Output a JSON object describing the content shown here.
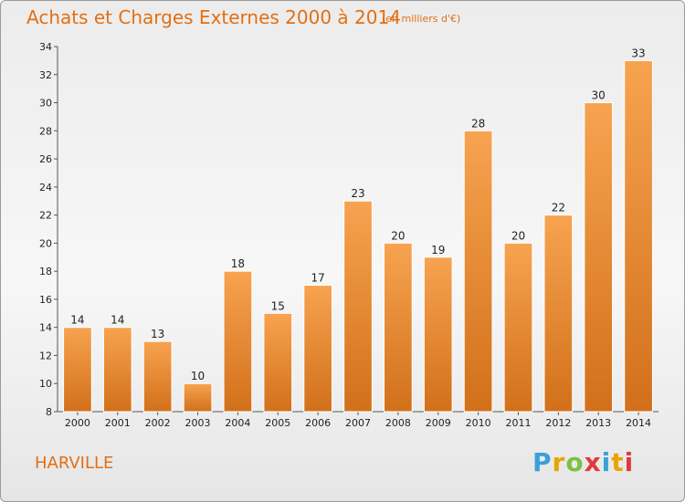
{
  "header": {
    "title": "Achats et Charges Externes 2000 à 2014",
    "subtitle": "(en milliers d'€)"
  },
  "footer": {
    "commune": "HARVILLE",
    "logo": {
      "letters": [
        "P",
        "r",
        "o",
        "x",
        "i",
        "t",
        "i"
      ],
      "colors": [
        "#3aa0d8",
        "#e8a400",
        "#7bc143",
        "#e3393c",
        "#3aa0d8",
        "#e8a400",
        "#e3393c"
      ]
    }
  },
  "chart_data": {
    "type": "bar",
    "categories": [
      "2000",
      "2001",
      "2002",
      "2003",
      "2004",
      "2005",
      "2006",
      "2007",
      "2008",
      "2009",
      "2010",
      "2011",
      "2012",
      "2013",
      "2014"
    ],
    "values": [
      14,
      14,
      13,
      10,
      18,
      15,
      17,
      23,
      20,
      19,
      28,
      20,
      22,
      30,
      33
    ],
    "title": "Achats et Charges Externes 2000 à 2014",
    "xlabel": "",
    "ylabel": "",
    "ylim": [
      8,
      34
    ],
    "yticks": [
      8,
      10,
      12,
      14,
      16,
      18,
      20,
      22,
      24,
      26,
      28,
      30,
      32,
      34
    ],
    "grid": false,
    "bar_color_top": "#f7a350",
    "bar_color_bottom": "#d2701a"
  }
}
